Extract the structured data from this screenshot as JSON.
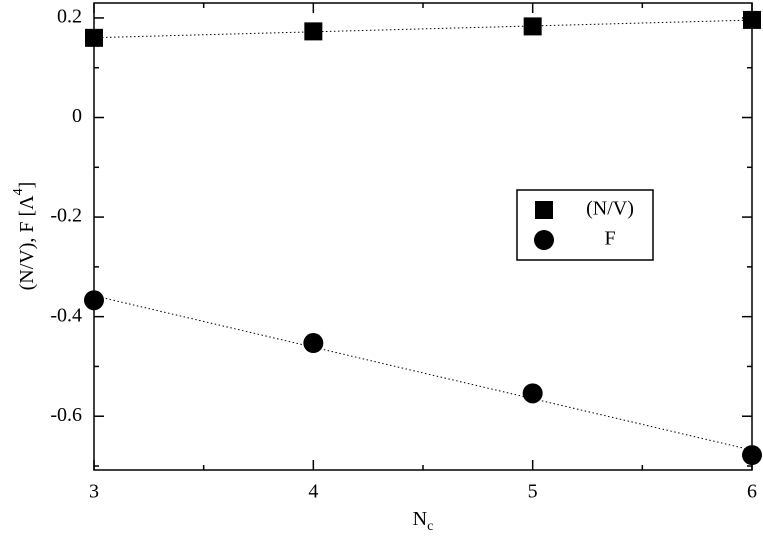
{
  "chart_data": {
    "type": "scatter",
    "xlabel": "N",
    "xlabel_sub": "c",
    "ylabel": "(N/V), F [Λ",
    "ylabel_sup": "4",
    "ylabel_end": "]",
    "x": [
      3,
      4,
      5,
      6
    ],
    "series": [
      {
        "name": "(N/V)",
        "color": "#000000",
        "marker": "square",
        "values": [
          0.16,
          0.173,
          0.183,
          0.196
        ]
      },
      {
        "name": "F",
        "color": "#000000",
        "marker": "circle",
        "values": [
          -0.367,
          -0.453,
          -0.554,
          -0.678
        ]
      }
    ],
    "fit_lines": true,
    "xlim": [
      3,
      6
    ],
    "xticks": [
      3,
      4,
      5,
      6
    ],
    "ylim": [
      -0.708,
      0.23
    ],
    "yticks": [
      -0.6,
      -0.4,
      -0.2,
      0,
      0.2
    ],
    "grid": false,
    "legend": "right"
  }
}
